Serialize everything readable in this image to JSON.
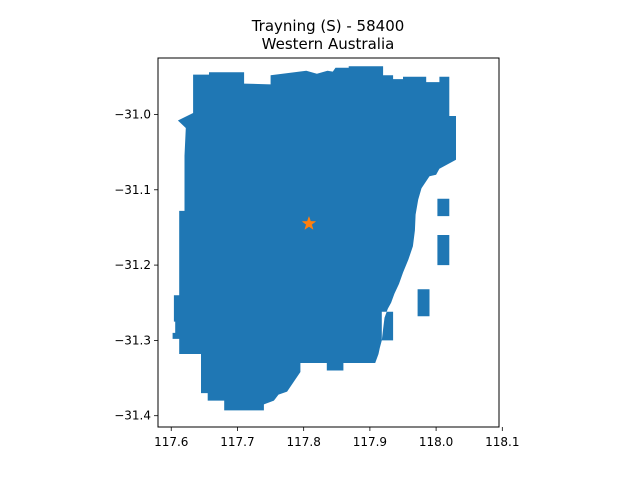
{
  "title": {
    "line1": "Trayning (S) - 58400",
    "line2": "Western Australia"
  },
  "colors": {
    "region_fill": "#1f77b4",
    "marker": "#ff7f0e",
    "axes": "#000000"
  },
  "chart_data": {
    "type": "map",
    "xlim": [
      117.58,
      118.095
    ],
    "ylim": [
      -31.415,
      -30.925
    ],
    "x_ticks": [
      {
        "value": 117.6,
        "label": "117.6"
      },
      {
        "value": 117.7,
        "label": "117.7"
      },
      {
        "value": 117.8,
        "label": "117.8"
      },
      {
        "value": 117.9,
        "label": "117.9"
      },
      {
        "value": 118.0,
        "label": "118.0"
      },
      {
        "value": 118.1,
        "label": "118.1"
      }
    ],
    "y_ticks": [
      {
        "value": -31.0,
        "label": "−31.0"
      },
      {
        "value": -31.1,
        "label": "−31.1"
      },
      {
        "value": -31.2,
        "label": "−31.2"
      },
      {
        "value": -31.3,
        "label": "−31.3"
      },
      {
        "value": -31.4,
        "label": "−31.4"
      }
    ],
    "region": {
      "name": "Trayning (S)",
      "outline": [
        [
          117.633,
          -30.947
        ],
        [
          117.657,
          -30.947
        ],
        [
          117.657,
          -30.944
        ],
        [
          117.71,
          -30.944
        ],
        [
          117.71,
          -30.959
        ],
        [
          117.75,
          -30.96
        ],
        [
          117.75,
          -30.948
        ],
        [
          117.804,
          -30.942
        ],
        [
          117.82,
          -30.946
        ],
        [
          117.836,
          -30.942
        ],
        [
          117.844,
          -30.943
        ],
        [
          117.848,
          -30.938
        ],
        [
          117.868,
          -30.938
        ],
        [
          117.868,
          -30.936
        ],
        [
          117.92,
          -30.936
        ],
        [
          117.92,
          -30.948
        ],
        [
          117.935,
          -30.948
        ],
        [
          117.935,
          -30.953
        ],
        [
          117.95,
          -30.953
        ],
        [
          117.95,
          -30.95
        ],
        [
          117.985,
          -30.95
        ],
        [
          117.985,
          -30.957
        ],
        [
          118.005,
          -30.957
        ],
        [
          118.005,
          -30.95
        ],
        [
          118.02,
          -30.95
        ],
        [
          118.02,
          -31.002
        ],
        [
          118.03,
          -31.002
        ],
        [
          118.03,
          -31.06
        ],
        [
          118.005,
          -31.072
        ],
        [
          118.0,
          -31.08
        ],
        [
          117.99,
          -31.082
        ],
        [
          117.978,
          -31.098
        ],
        [
          117.973,
          -31.113
        ],
        [
          117.969,
          -31.133
        ],
        [
          117.968,
          -31.154
        ],
        [
          117.965,
          -31.175
        ],
        [
          117.958,
          -31.193
        ],
        [
          117.95,
          -31.21
        ],
        [
          117.944,
          -31.225
        ],
        [
          117.937,
          -31.238
        ],
        [
          117.932,
          -31.25
        ],
        [
          117.927,
          -31.258
        ],
        [
          117.922,
          -31.27
        ],
        [
          117.92,
          -31.285
        ],
        [
          117.918,
          -31.3
        ],
        [
          117.915,
          -31.31
        ],
        [
          117.913,
          -31.318
        ],
        [
          117.908,
          -31.33
        ],
        [
          117.86,
          -31.33
        ],
        [
          117.86,
          -31.34
        ],
        [
          117.835,
          -31.34
        ],
        [
          117.835,
          -31.33
        ],
        [
          117.795,
          -31.33
        ],
        [
          117.795,
          -31.342
        ],
        [
          117.775,
          -31.368
        ],
        [
          117.762,
          -31.372
        ],
        [
          117.755,
          -31.38
        ],
        [
          117.74,
          -31.385
        ],
        [
          117.74,
          -31.393
        ],
        [
          117.68,
          -31.393
        ],
        [
          117.68,
          -31.38
        ],
        [
          117.655,
          -31.38
        ],
        [
          117.655,
          -31.37
        ],
        [
          117.645,
          -31.37
        ],
        [
          117.645,
          -31.318
        ],
        [
          117.612,
          -31.318
        ],
        [
          117.612,
          -31.298
        ],
        [
          117.602,
          -31.298
        ],
        [
          117.602,
          -31.29
        ],
        [
          117.606,
          -31.29
        ],
        [
          117.606,
          -31.275
        ],
        [
          117.604,
          -31.275
        ],
        [
          117.604,
          -31.24
        ],
        [
          117.612,
          -31.24
        ],
        [
          117.612,
          -31.128
        ],
        [
          117.62,
          -31.128
        ],
        [
          117.62,
          -31.055
        ],
        [
          117.622,
          -31.018
        ],
        [
          117.61,
          -31.008
        ],
        [
          117.633,
          -30.998
        ]
      ],
      "notches": [
        [
          [
            118.002,
            -31.112
          ],
          [
            118.02,
            -31.112
          ],
          [
            118.02,
            -31.135
          ],
          [
            118.002,
            -31.135
          ]
        ],
        [
          [
            118.002,
            -31.16
          ],
          [
            118.02,
            -31.16
          ],
          [
            118.02,
            -31.2
          ],
          [
            118.002,
            -31.2
          ]
        ],
        [
          [
            117.972,
            -31.232
          ],
          [
            117.99,
            -31.232
          ],
          [
            117.99,
            -31.268
          ],
          [
            117.972,
            -31.268
          ]
        ],
        [
          [
            117.918,
            -31.262
          ],
          [
            117.935,
            -31.262
          ],
          [
            117.935,
            -31.3
          ],
          [
            117.918,
            -31.3
          ]
        ]
      ]
    },
    "marker": {
      "symbol": "star",
      "lon": 117.808,
      "lat": -31.145
    }
  }
}
